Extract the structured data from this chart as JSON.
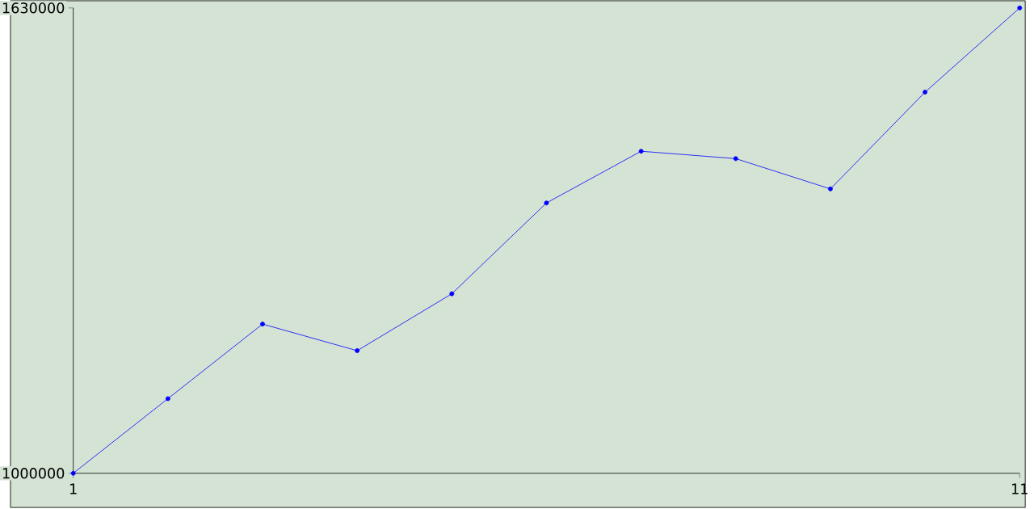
{
  "chart_data": {
    "type": "line",
    "x": [
      1,
      2,
      3,
      4,
      5,
      6,
      7,
      8,
      9,
      10,
      11
    ],
    "series": [
      {
        "color": "#0000ff",
        "values": [
          1000000,
          1101000,
          1202000,
          1166000,
          1243000,
          1366000,
          1436000,
          1426000,
          1385000,
          1516000,
          1630000
        ]
      }
    ],
    "xlim": [
      1,
      11
    ],
    "xticks": [
      1,
      11
    ],
    "ylim": [
      1000000,
      1630000
    ],
    "yticks": [
      1000000,
      1630000
    ],
    "grid": false,
    "marker": "circle",
    "line_style": "solid"
  }
}
